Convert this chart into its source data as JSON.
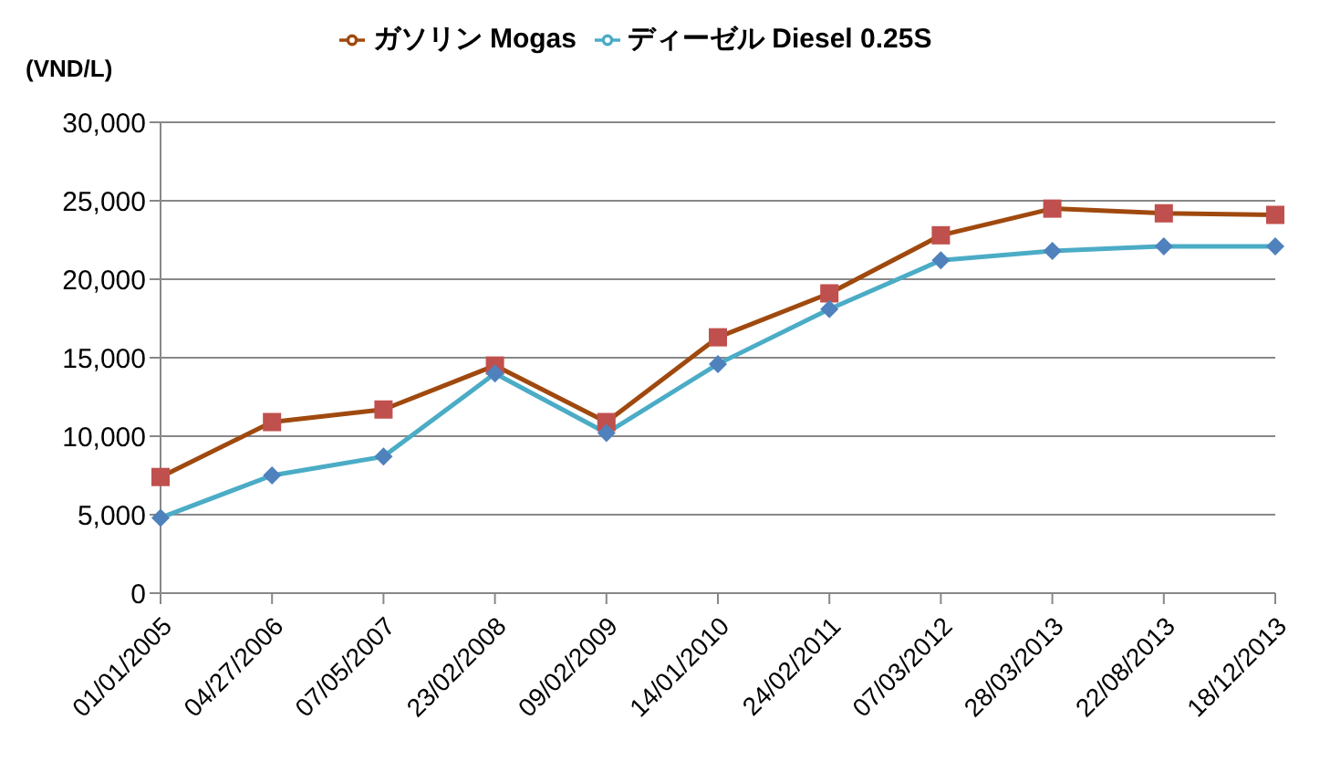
{
  "chart_data": {
    "type": "line",
    "ylabel": "(VND/L)",
    "categories": [
      "01/01/2005",
      "04/27/2006",
      "07/05/2007",
      "23/02/2008",
      "09/02/2009",
      "14/01/2010",
      "24/02/2011",
      "07/03/2012",
      "28/03/2013",
      "22/08/2013",
      "18/12/2013"
    ],
    "series": [
      {
        "name": "ディーゼル Diesel 0.25S",
        "color": "#4bacc6",
        "marker": "diamond",
        "values": [
          4800,
          7500,
          8700,
          14000,
          10200,
          14600,
          18100,
          21200,
          21800,
          22100,
          22100
        ]
      },
      {
        "name": "ガソリン Mogas",
        "color": "#a0490e",
        "marker": "square",
        "values": [
          7400,
          10900,
          11700,
          14500,
          10900,
          16300,
          19100,
          22800,
          24500,
          24200,
          24100
        ]
      }
    ],
    "ylim": [
      0,
      30000
    ],
    "yticks": [
      {
        "value": 0,
        "label": "0"
      },
      {
        "value": 5000,
        "label": "5,000"
      },
      {
        "value": 10000,
        "label": "10,000"
      },
      {
        "value": 15000,
        "label": "15,000"
      },
      {
        "value": 20000,
        "label": "20,000"
      },
      {
        "value": 25000,
        "label": "25,000"
      },
      {
        "value": 30000,
        "label": "30,000"
      }
    ],
    "grid": "y",
    "legend": "top"
  }
}
